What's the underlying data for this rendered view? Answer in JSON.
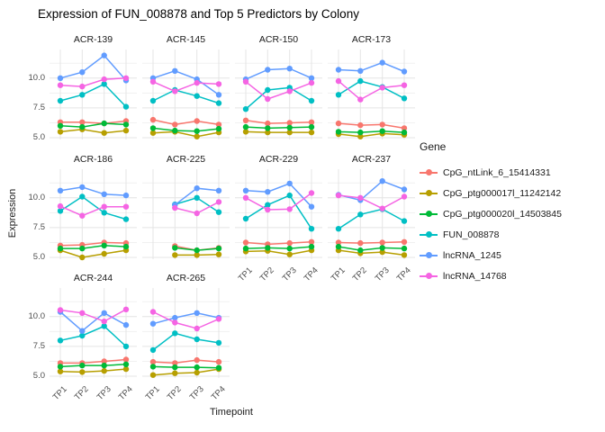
{
  "chart_data": {
    "type": "line",
    "title": "Expression of FUN_008878 and Top 5 Predictors by Colony",
    "xlabel": "Timepoint",
    "ylabel": "Expression",
    "legend_title": "Gene",
    "legend_position": "right",
    "x_categories": [
      "TP1",
      "TP2",
      "TP3",
      "TP4"
    ],
    "y_tick_labels": [
      "10.0",
      "7.5",
      "5.0"
    ],
    "y_ticks": [
      10.0,
      7.5,
      5.0
    ],
    "y_minor_ticks": [
      11.25,
      8.75,
      6.25
    ],
    "ylim": [
      4.85,
      12.4
    ],
    "grid": true,
    "genes": [
      {
        "name": "CpG_ntLink_6_15414331",
        "color": "#F8766D"
      },
      {
        "name": "CpG_ptg000017l_11242142",
        "color": "#B79F00"
      },
      {
        "name": "CpG_ptg000020l_14503845",
        "color": "#00BA38"
      },
      {
        "name": "FUN_008878",
        "color": "#00BFC4"
      },
      {
        "name": "lncRNA_1245",
        "color": "#619CFF"
      },
      {
        "name": "lncRNA_14768",
        "color": "#F564E3"
      }
    ],
    "facets": [
      {
        "colony": "ACR-139",
        "values": [
          [
            6.3,
            6.3,
            6.2,
            6.4
          ],
          [
            5.5,
            5.7,
            5.4,
            5.6
          ],
          [
            6.0,
            5.9,
            6.2,
            6.1
          ],
          [
            8.1,
            8.6,
            9.5,
            7.6
          ],
          [
            10.0,
            10.5,
            11.9,
            9.8
          ],
          [
            9.4,
            9.3,
            9.9,
            10.0
          ]
        ]
      },
      {
        "colony": "ACR-145",
        "values": [
          [
            6.5,
            6.1,
            6.4,
            6.1
          ],
          [
            5.4,
            5.5,
            5.1,
            5.45
          ],
          [
            5.8,
            5.6,
            5.55,
            5.75
          ],
          [
            8.1,
            9.0,
            8.5,
            7.9
          ],
          [
            10.0,
            10.6,
            9.9,
            8.6
          ],
          [
            9.7,
            8.9,
            9.6,
            9.5
          ]
        ]
      },
      {
        "colony": "ACR-150",
        "values": [
          [
            6.45,
            6.2,
            6.25,
            6.3
          ],
          [
            5.5,
            5.45,
            5.45,
            5.45
          ],
          [
            5.9,
            5.8,
            5.85,
            5.9
          ],
          [
            7.4,
            9.0,
            9.2,
            8.1
          ],
          [
            9.9,
            10.7,
            10.8,
            10.0
          ],
          [
            9.7,
            8.25,
            8.9,
            9.6
          ]
        ]
      },
      {
        "colony": "ACR-173",
        "values": [
          [
            6.2,
            6.05,
            6.1,
            5.8
          ],
          [
            5.3,
            5.1,
            5.35,
            5.25
          ],
          [
            5.5,
            5.45,
            5.55,
            5.45
          ],
          [
            8.6,
            9.75,
            9.25,
            8.3
          ],
          [
            10.7,
            10.6,
            11.3,
            10.55
          ],
          [
            9.75,
            8.2,
            9.2,
            9.4
          ]
        ]
      },
      {
        "colony": "ACR-186",
        "values": [
          [
            6.0,
            6.05,
            6.25,
            6.2
          ],
          [
            5.6,
            5.0,
            5.3,
            5.6
          ],
          [
            5.75,
            5.75,
            6.0,
            5.9
          ],
          [
            8.9,
            10.1,
            8.75,
            8.2
          ],
          [
            10.6,
            10.9,
            10.3,
            10.2
          ],
          [
            9.3,
            8.5,
            9.25,
            9.25
          ]
        ]
      },
      {
        "colony": "ACR-225",
        "values": [
          [
            null,
            5.95,
            5.6,
            5.8
          ],
          [
            null,
            5.2,
            5.2,
            5.25
          ],
          [
            null,
            5.8,
            5.6,
            5.75
          ],
          [
            null,
            9.45,
            10.0,
            8.8
          ],
          [
            null,
            9.4,
            10.8,
            10.6
          ],
          [
            null,
            9.15,
            8.7,
            9.65
          ]
        ]
      },
      {
        "colony": "ACR-229",
        "values": [
          [
            6.25,
            6.1,
            6.2,
            6.3
          ],
          [
            5.5,
            5.55,
            5.25,
            5.6
          ],
          [
            5.75,
            5.8,
            5.75,
            5.9
          ],
          [
            8.25,
            9.4,
            10.2,
            7.4
          ],
          [
            10.6,
            10.5,
            11.2,
            9.25
          ],
          [
            10.0,
            9.0,
            9.05,
            10.4
          ]
        ]
      },
      {
        "colony": "ACR-237",
        "values": [
          [
            6.25,
            6.2,
            6.25,
            6.3
          ],
          [
            5.6,
            5.35,
            5.45,
            5.2
          ],
          [
            5.9,
            5.6,
            5.8,
            5.75
          ],
          [
            7.4,
            8.6,
            9.05,
            8.05
          ],
          [
            10.25,
            9.8,
            11.4,
            10.7
          ],
          [
            10.2,
            10.0,
            9.1,
            10.1
          ]
        ]
      },
      {
        "colony": "ACR-244",
        "values": [
          [
            6.1,
            6.1,
            6.25,
            6.4
          ],
          [
            5.4,
            5.35,
            5.45,
            5.6
          ],
          [
            5.8,
            5.9,
            5.9,
            6.0
          ],
          [
            8.0,
            8.4,
            9.2,
            7.5
          ],
          [
            10.4,
            8.8,
            10.3,
            9.3
          ],
          [
            10.55,
            10.3,
            9.6,
            10.6
          ]
        ]
      },
      {
        "colony": "ACR-265",
        "values": [
          [
            6.2,
            6.1,
            6.35,
            6.2
          ],
          [
            5.1,
            5.25,
            5.3,
            5.6
          ],
          [
            5.8,
            5.75,
            5.75,
            5.7
          ],
          [
            7.2,
            8.6,
            8.1,
            7.8
          ],
          [
            9.4,
            9.9,
            10.3,
            9.9
          ],
          [
            10.4,
            9.5,
            9.0,
            9.8
          ]
        ]
      }
    ]
  }
}
